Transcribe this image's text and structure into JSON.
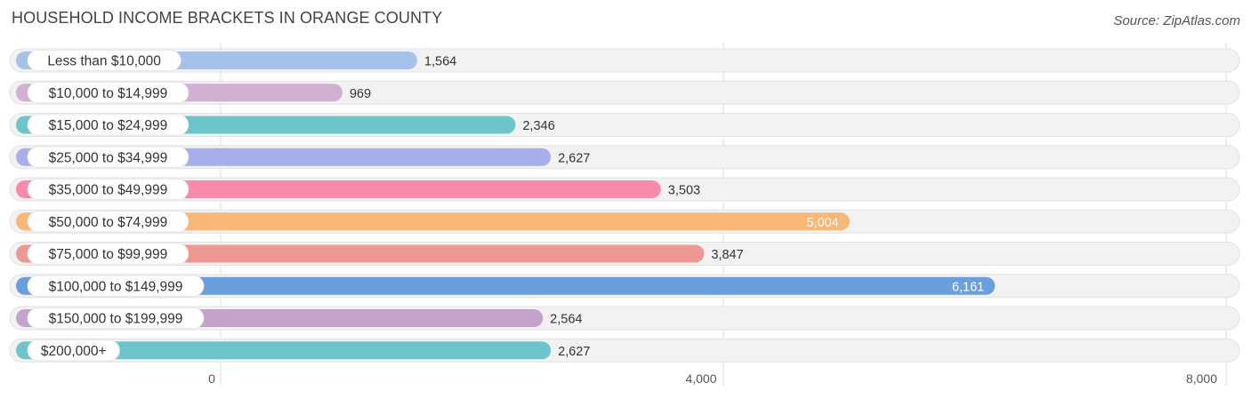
{
  "title": "HOUSEHOLD INCOME BRACKETS IN ORANGE COUNTY",
  "source": "Source: ZipAtlas.com",
  "chart_data": {
    "type": "bar",
    "orientation": "horizontal",
    "title": "HOUSEHOLD INCOME BRACKETS IN ORANGE COUNTY",
    "categories": [
      "Less than $10,000",
      "$10,000 to $14,999",
      "$15,000 to $24,999",
      "$25,000 to $34,999",
      "$35,000 to $49,999",
      "$50,000 to $74,999",
      "$75,000 to $99,999",
      "$100,000 to $149,999",
      "$150,000 to $199,999",
      "$200,000+"
    ],
    "values": [
      1564,
      969,
      2346,
      2627,
      3503,
      5004,
      3847,
      6161,
      2564,
      2627
    ],
    "value_labels": [
      "1,564",
      "969",
      "2,346",
      "2,627",
      "3,503",
      "5,004",
      "3,847",
      "6,161",
      "2,564",
      "2,627"
    ],
    "colors": [
      "#a4c2ea",
      "#d1b0d4",
      "#6dc5cb",
      "#a8aeea",
      "#f78bab",
      "#f8b677",
      "#ee9893",
      "#6a9fde",
      "#c4a3cb",
      "#6dc5cb"
    ],
    "xlim": [
      0,
      8000
    ],
    "ticks": [
      0,
      4000,
      8000
    ],
    "tick_labels": [
      "0",
      "4,000",
      "8,000"
    ],
    "grid": true,
    "legend": "none"
  }
}
